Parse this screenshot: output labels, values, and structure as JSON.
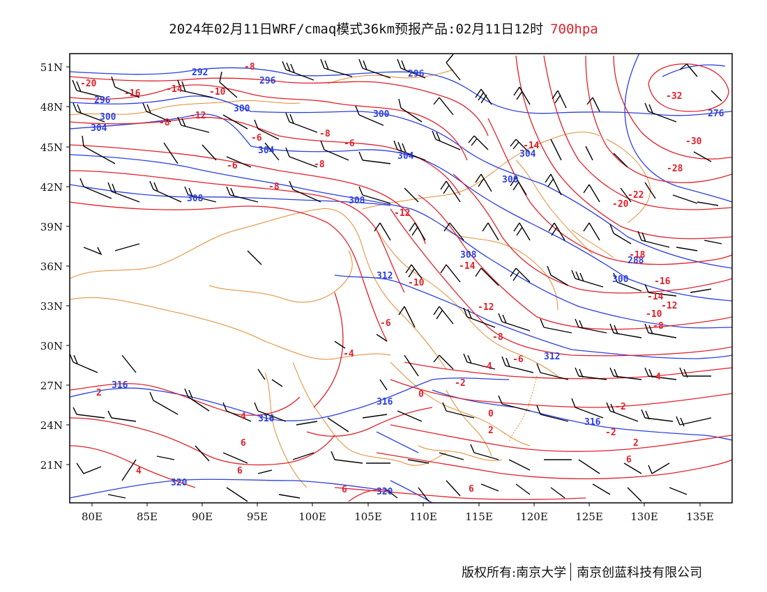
{
  "title": {
    "main": "2024年02月11日WRF/cmaq模式36km预报产品:02月11日12时",
    "level": "700hpa",
    "level_color": "#e0202a"
  },
  "axes": {
    "lat_labels": [
      "51N",
      "48N",
      "45N",
      "42N",
      "39N",
      "36N",
      "33N",
      "30N",
      "27N",
      "24N",
      "21N"
    ],
    "lon_labels": [
      "80E",
      "85E",
      "90E",
      "95E",
      "100E",
      "105E",
      "110E",
      "115E",
      "120E",
      "125E",
      "130E",
      "135E"
    ]
  },
  "colors": {
    "geopotential_height_contours": "#2b3fe0",
    "temperature_contours": "#e0202a",
    "boundaries": "#e08a2e",
    "wind_barbs": "#000000"
  },
  "height_labels": [
    "292",
    "296",
    "296",
    "300",
    "300",
    "300",
    "304",
    "304",
    "304",
    "308",
    "308",
    "308",
    "312",
    "312",
    "316",
    "316",
    "316",
    "316",
    "320",
    "320",
    "276",
    "296",
    "300",
    "300",
    "288",
    "304"
  ],
  "temperature_labels": [
    "-20",
    "-16",
    "-14",
    "-10",
    "-12",
    "-8",
    "-8",
    "-8",
    "-6",
    "-6",
    "-6",
    "-8",
    "-8",
    "-12",
    "-14",
    "-10",
    "-12",
    "-6",
    "-4",
    "-2",
    "-2",
    "0",
    "2",
    "2",
    "4",
    "6",
    "6",
    "4",
    "6",
    "6",
    "-32",
    "-30",
    "-28",
    "-22",
    "-20",
    "-18",
    "-16",
    "-14",
    "-12",
    "-10",
    "-8",
    "-8",
    "-6",
    "-4",
    "-2",
    "0",
    "2",
    "4",
    "6",
    "-14"
  ],
  "footer": {
    "left": "版权所有:南京大学",
    "right": "南京创蓝科技有限公司"
  }
}
